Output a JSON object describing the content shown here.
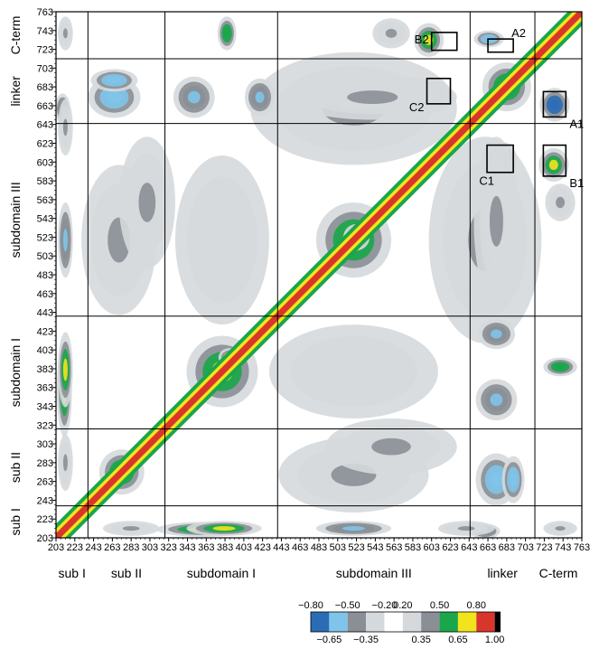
{
  "chart_data": {
    "type": "heatmap",
    "title": "",
    "xlabel": "",
    "ylabel": "",
    "range": [
      203,
      763
    ],
    "ticks": [
      203,
      223,
      243,
      263,
      283,
      303,
      323,
      343,
      363,
      383,
      403,
      423,
      443,
      463,
      483,
      503,
      523,
      543,
      563,
      583,
      603,
      623,
      643,
      663,
      683,
      703,
      723,
      743,
      763
    ],
    "segments": [
      {
        "name": "sub I",
        "start": 203,
        "end": 237
      },
      {
        "name": "sub II",
        "start": 237,
        "end": 319
      },
      {
        "name": "subdomain I",
        "start": 319,
        "end": 439
      },
      {
        "name": "subdomain III",
        "start": 439,
        "end": 644
      },
      {
        "name": "linker",
        "start": 644,
        "end": 713
      },
      {
        "name": "C-term",
        "start": 713,
        "end": 763
      }
    ],
    "boxes": [
      {
        "label": "A1",
        "x": [
          722,
          746
        ],
        "y": [
          651,
          678
        ]
      },
      {
        "label": "A2",
        "x": [
          663,
          690
        ],
        "y": [
          720,
          734
        ]
      },
      {
        "label": "B1",
        "x": [
          722,
          746
        ],
        "y": [
          588,
          621
        ]
      },
      {
        "label": "B2",
        "x": [
          603,
          630
        ],
        "y": [
          722,
          741
        ]
      },
      {
        "label": "C1",
        "x": [
          662,
          690
        ],
        "y": [
          592,
          621
        ]
      },
      {
        "label": "C2",
        "x": [
          598,
          623
        ],
        "y": [
          665,
          692
        ]
      }
    ],
    "colorbar": {
      "boundaries": [
        -0.8,
        -0.65,
        -0.5,
        -0.35,
        -0.2,
        0.2,
        0.35,
        0.5,
        0.65,
        0.8,
        1.0
      ],
      "top_labels": [
        "-0.80",
        "-0.50",
        "-0.20",
        "0.20",
        "0.50",
        "0.80"
      ],
      "bottom_labels": [
        "-0.65",
        "-0.35",
        "0.35",
        "0.65",
        "1.00"
      ],
      "colors": [
        "#2b6db5",
        "#7fc4ea",
        "#8a8f96",
        "#d6d9dc",
        "#ffffff",
        "#d6d9dc",
        "#8a8f96",
        "#1aa64a",
        "#f2e41c",
        "#d9362b",
        "#000000"
      ]
    },
    "features": [
      {
        "x": [
          203,
          763
        ],
        "y": [
          203,
          763
        ],
        "kind": "diagonal",
        "value": 1.0
      },
      {
        "cx": 273,
        "cy": 273,
        "rx": 24,
        "ry": 24,
        "value": 0.6
      },
      {
        "cx": 278,
        "cy": 278,
        "rx": 10,
        "ry": 10,
        "value": 0.7
      },
      {
        "cx": 380,
        "cy": 380,
        "rx": 38,
        "ry": 38,
        "value": 0.6
      },
      {
        "cx": 388,
        "cy": 395,
        "rx": 12,
        "ry": 10,
        "value": 0.75
      },
      {
        "cx": 520,
        "cy": 520,
        "rx": 40,
        "ry": 40,
        "value": 0.6
      },
      {
        "cx": 523,
        "cy": 523,
        "rx": 14,
        "ry": 14,
        "value": 0.75
      },
      {
        "cx": 683,
        "cy": 683,
        "rx": 26,
        "ry": 26,
        "value": 0.6
      },
      {
        "cx": 733,
        "cy": 600,
        "rx": 16,
        "ry": 18,
        "value": 0.6
      },
      {
        "cx": 600,
        "cy": 733,
        "rx": 16,
        "ry": 18,
        "value": 0.6
      },
      {
        "cx": 676,
        "cy": 606,
        "rx": 18,
        "ry": 19,
        "value": -0.75
      },
      {
        "cx": 606,
        "cy": 676,
        "rx": 16,
        "ry": 16,
        "value": -0.55
      },
      {
        "cx": 734,
        "cy": 664,
        "rx": 16,
        "ry": 18,
        "value": -0.78
      },
      {
        "cx": 664,
        "cy": 734,
        "rx": 16,
        "ry": 9,
        "value": -0.55
      },
      {
        "cx": 520,
        "cy": 660,
        "rx": 110,
        "ry": 60,
        "value": 0.3
      },
      {
        "cx": 660,
        "cy": 520,
        "rx": 60,
        "ry": 110,
        "value": 0.3
      },
      {
        "cx": 270,
        "cy": 520,
        "rx": 40,
        "ry": 80,
        "value": -0.35
      },
      {
        "cx": 520,
        "cy": 270,
        "rx": 80,
        "ry": 40,
        "value": -0.35
      },
      {
        "cx": 380,
        "cy": 520,
        "rx": 50,
        "ry": 90,
        "value": -0.25
      },
      {
        "cx": 520,
        "cy": 380,
        "rx": 90,
        "ry": 50,
        "value": -0.25
      },
      {
        "cx": 265,
        "cy": 672,
        "rx": 28,
        "ry": 22,
        "value": -0.55
      },
      {
        "cx": 672,
        "cy": 265,
        "rx": 22,
        "ry": 28,
        "value": -0.55
      },
      {
        "cx": 350,
        "cy": 672,
        "rx": 22,
        "ry": 22,
        "value": -0.45
      },
      {
        "cx": 672,
        "cy": 350,
        "rx": 22,
        "ry": 22,
        "value": -0.45
      },
      {
        "cx": 420,
        "cy": 672,
        "rx": 16,
        "ry": 20,
        "value": -0.45
      },
      {
        "cx": 672,
        "cy": 420,
        "rx": 20,
        "ry": 16,
        "value": -0.45
      },
      {
        "cx": 540,
        "cy": 672,
        "rx": 90,
        "ry": 24,
        "value": -0.3
      },
      {
        "cx": 672,
        "cy": 540,
        "rx": 24,
        "ry": 90,
        "value": -0.3
      },
      {
        "cx": 210,
        "cy": 660,
        "rx": 8,
        "ry": 16,
        "value": -0.45
      },
      {
        "cx": 660,
        "cy": 210,
        "rx": 16,
        "ry": 8,
        "value": -0.45
      },
      {
        "cx": 212,
        "cy": 360,
        "rx": 8,
        "ry": 50,
        "value": 0.55
      },
      {
        "cx": 360,
        "cy": 212,
        "rx": 50,
        "ry": 8,
        "value": 0.55
      },
      {
        "cx": 385,
        "cy": 740,
        "rx": 10,
        "ry": 18,
        "value": 0.5
      },
      {
        "cx": 740,
        "cy": 385,
        "rx": 18,
        "ry": 10,
        "value": 0.5
      },
      {
        "cx": 560,
        "cy": 740,
        "rx": 20,
        "ry": 16,
        "value": -0.3
      },
      {
        "cx": 740,
        "cy": 560,
        "rx": 16,
        "ry": 20,
        "value": -0.3
      },
      {
        "cx": 283,
        "cy": 213,
        "rx": 30,
        "ry": 8,
        "value": -0.35
      },
      {
        "cx": 213,
        "cy": 283,
        "rx": 8,
        "ry": 30,
        "value": -0.35
      },
      {
        "cx": 382,
        "cy": 213,
        "rx": 40,
        "ry": 8,
        "value": 0.55
      },
      {
        "cx": 213,
        "cy": 382,
        "rx": 8,
        "ry": 40,
        "value": 0.55
      },
      {
        "cx": 520,
        "cy": 213,
        "rx": 40,
        "ry": 8,
        "value": -0.45
      },
      {
        "cx": 213,
        "cy": 520,
        "rx": 8,
        "ry": 40,
        "value": -0.45
      },
      {
        "cx": 640,
        "cy": 213,
        "rx": 30,
        "ry": 8,
        "value": -0.35
      },
      {
        "cx": 213,
        "cy": 640,
        "rx": 8,
        "ry": 30,
        "value": -0.35
      },
      {
        "cx": 740,
        "cy": 213,
        "rx": 18,
        "ry": 8,
        "value": -0.35
      },
      {
        "cx": 213,
        "cy": 740,
        "rx": 8,
        "ry": 18,
        "value": -0.35
      },
      {
        "cx": 560,
        "cy": 300,
        "rx": 70,
        "ry": 30,
        "value": -0.3
      },
      {
        "cx": 300,
        "cy": 560,
        "rx": 30,
        "ry": 70,
        "value": -0.3
      },
      {
        "cx": 690,
        "cy": 265,
        "rx": 12,
        "ry": 25,
        "value": -0.55
      },
      {
        "cx": 265,
        "cy": 690,
        "rx": 25,
        "ry": 12,
        "value": -0.55
      }
    ]
  }
}
